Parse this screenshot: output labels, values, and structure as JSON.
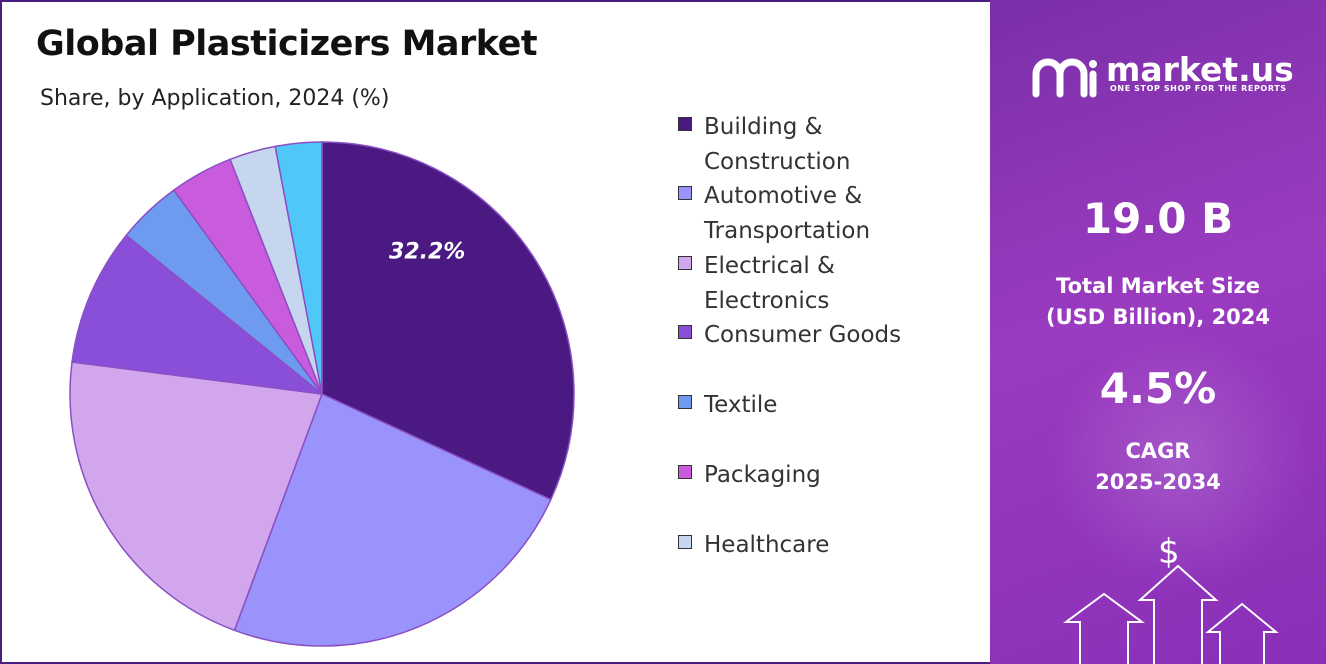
{
  "title": "Global Plasticizers Market",
  "subtitle": "Share, by Application, 2024 (%)",
  "chart_data": {
    "type": "pie",
    "categories": [
      "Building & Construction",
      "Automotive & Transportation",
      "Electrical & Electronics",
      "Consumer Goods",
      "Textile",
      "Packaging",
      "Healthcare",
      ""
    ],
    "values": [
      32.2,
      24.0,
      21.6,
      8.9,
      4.2,
      4.1,
      3.0,
      3.0
    ],
    "colors": [
      "#4a1a82",
      "#9a93fb",
      "#d2a6ec",
      "#8a4fd8",
      "#6e9af0",
      "#c95cdc",
      "#c6d6ee",
      "#4fc8f7"
    ],
    "data_labels": [
      "32.2%",
      "",
      "",
      "",
      "",
      "",
      "",
      ""
    ],
    "start_angle_deg": 0,
    "direction": "clockwise"
  },
  "legend": {
    "items": [
      {
        "label_lines": [
          "Building &",
          "Construction"
        ],
        "color": "#4a1a82"
      },
      {
        "label_lines": [
          "Automotive &",
          "Transportation"
        ],
        "color": "#9a93fb"
      },
      {
        "label_lines": [
          "Electrical &",
          "Electronics"
        ],
        "color": "#d2a6ec"
      },
      {
        "label_lines": [
          "Consumer Goods"
        ],
        "color": "#8a4fd8"
      },
      {
        "label_lines": [
          "Textile"
        ],
        "color": "#6e9af0"
      },
      {
        "label_lines": [
          "Packaging"
        ],
        "color": "#c95cdc"
      },
      {
        "label_lines": [
          "Healthcare"
        ],
        "color": "#c6d6ee"
      }
    ]
  },
  "side_panel": {
    "brand": {
      "name": "market.us",
      "tagline": "ONE STOP SHOP FOR THE REPORTS",
      "logo_icon": "market-us-logo-icon"
    },
    "market_size_value": "19.0 B",
    "market_size_label_1": "Total Market Size",
    "market_size_label_2": "(USD Billion), 2024",
    "cagr_value": "4.5%",
    "cagr_label_1": "CAGR",
    "cagr_label_2": "2025-2034",
    "decor_icons": [
      "dollar-icon",
      "up-arrow-icon"
    ],
    "dollar_symbol": "$"
  }
}
